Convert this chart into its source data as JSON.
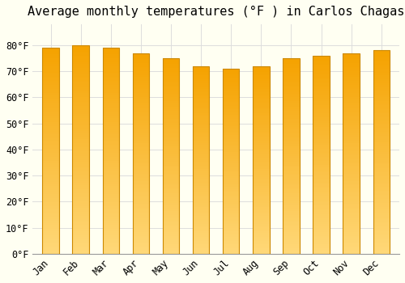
{
  "title": "Average monthly temperatures (°F ) in Carlos Chagas",
  "months": [
    "Jan",
    "Feb",
    "Mar",
    "Apr",
    "May",
    "Jun",
    "Jul",
    "Aug",
    "Sep",
    "Oct",
    "Nov",
    "Dec"
  ],
  "values": [
    79,
    80,
    79,
    77,
    75,
    72,
    71,
    72,
    75,
    76,
    77,
    78
  ],
  "bar_color_top": "#F5A200",
  "bar_color_bottom": "#FFD878",
  "bar_edge_color": "#CC8800",
  "background_color": "#FFFFF2",
  "ylim": [
    0,
    88
  ],
  "yticks": [
    0,
    10,
    20,
    30,
    40,
    50,
    60,
    70,
    80
  ],
  "ytick_labels": [
    "0°F",
    "10°F",
    "20°F",
    "30°F",
    "40°F",
    "50°F",
    "60°F",
    "70°F",
    "80°F"
  ],
  "grid_color": "#dddddd",
  "title_fontsize": 11,
  "bar_width": 0.55,
  "n_gradient_steps": 100
}
